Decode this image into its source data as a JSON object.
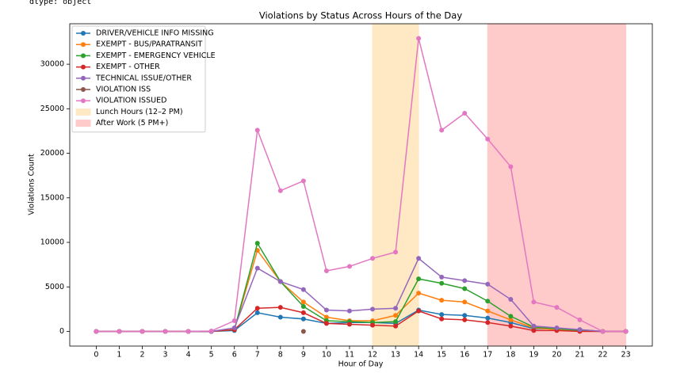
{
  "output_text": "dtype: object",
  "chart_data": {
    "type": "line",
    "title": "Violations by Status Across Hours of the Day",
    "xlabel": "Hour of Day",
    "ylabel": "Violations Count",
    "x": [
      0,
      1,
      2,
      3,
      4,
      5,
      6,
      7,
      8,
      9,
      10,
      11,
      12,
      13,
      14,
      15,
      16,
      17,
      18,
      19,
      20,
      21,
      22,
      23
    ],
    "xlim": [
      -1.15,
      24.15
    ],
    "xticks": [
      0,
      1,
      2,
      3,
      4,
      5,
      6,
      7,
      8,
      9,
      10,
      11,
      12,
      13,
      14,
      15,
      16,
      17,
      18,
      19,
      20,
      21,
      22,
      23
    ],
    "ylim": [
      -1645,
      34545
    ],
    "yticks": [
      0,
      5000,
      10000,
      15000,
      20000,
      25000,
      30000
    ],
    "legend": "upper left",
    "series": [
      {
        "name": "DRIVER/VEHICLE INFO MISSING",
        "color": "#1f77b4",
        "values": [
          0,
          0,
          0,
          0,
          0,
          0,
          100,
          2100,
          1600,
          1400,
          900,
          1000,
          1000,
          900,
          2400,
          1900,
          1800,
          1500,
          1000,
          300,
          300,
          200,
          0,
          0
        ]
      },
      {
        "name": "EXEMPT - BUS/PARATRANSIT",
        "color": "#ff7f0e",
        "values": [
          0,
          0,
          0,
          0,
          0,
          0,
          200,
          9100,
          5600,
          3300,
          1600,
          1200,
          1200,
          1800,
          4300,
          3500,
          3300,
          2300,
          1300,
          400,
          200,
          100,
          0,
          0
        ]
      },
      {
        "name": "EXEMPT - EMERGENCY VEHICLE",
        "color": "#2ca02c",
        "values": [
          0,
          0,
          0,
          0,
          0,
          0,
          200,
          9900,
          5600,
          2800,
          1200,
          1100,
          1000,
          1100,
          5900,
          5400,
          4800,
          3400,
          1700,
          500,
          300,
          100,
          0,
          0
        ]
      },
      {
        "name": "EXEMPT - OTHER",
        "color": "#d62728",
        "values": [
          0,
          0,
          0,
          0,
          0,
          0,
          200,
          2600,
          2700,
          2100,
          900,
          800,
          700,
          600,
          2300,
          1400,
          1300,
          1000,
          600,
          100,
          100,
          0,
          0,
          0
        ]
      },
      {
        "name": "TECHNICAL ISSUE/OTHER",
        "color": "#9467bd",
        "values": [
          0,
          0,
          0,
          0,
          0,
          0,
          400,
          7100,
          5600,
          4700,
          2400,
          2300,
          2500,
          2600,
          8200,
          6100,
          5700,
          5300,
          3600,
          600,
          400,
          200,
          0,
          0
        ]
      },
      {
        "name": "VIOLATION ISS",
        "color": "#8c564b",
        "values": [
          null,
          null,
          null,
          null,
          null,
          null,
          null,
          null,
          null,
          0,
          null,
          null,
          null,
          null,
          null,
          null,
          null,
          null,
          null,
          null,
          null,
          null,
          null,
          null
        ]
      },
      {
        "name": "VIOLATION ISSUED",
        "color": "#e377c2",
        "values": [
          0,
          0,
          0,
          0,
          0,
          50,
          1200,
          22600,
          15800,
          16900,
          6800,
          7300,
          8200,
          8900,
          32900,
          22600,
          24500,
          21600,
          18500,
          3300,
          2700,
          1300,
          0,
          0
        ]
      }
    ],
    "spans": [
      {
        "name": "Lunch Hours (12–2 PM)",
        "start": 12,
        "end": 14,
        "color": "#ffe8c4"
      },
      {
        "name": "After Work (5 PM+)",
        "start": 17,
        "end": 23,
        "color": "#ffcaca"
      }
    ]
  }
}
